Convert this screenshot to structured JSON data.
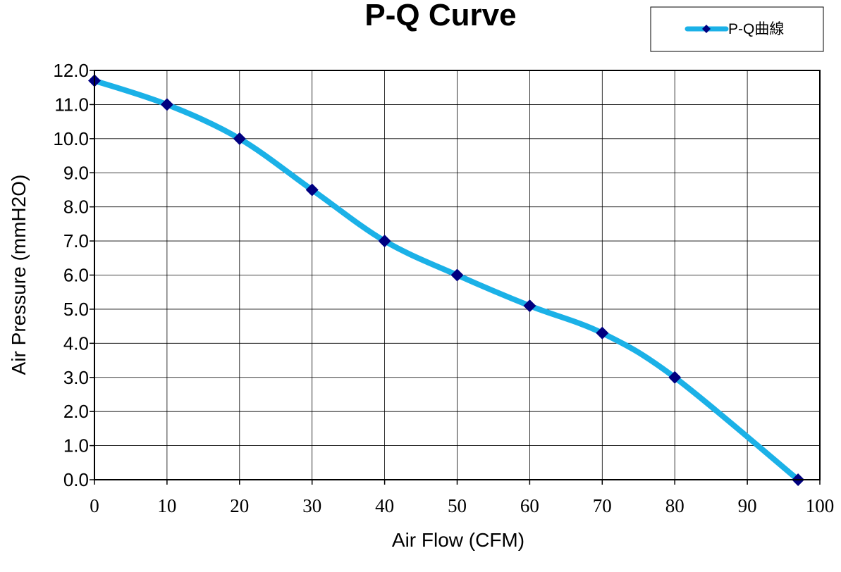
{
  "chart_data": {
    "type": "line",
    "title": "P-Q Curve",
    "xlabel": "Air Flow (CFM)",
    "ylabel": "Air Pressure (mmH2O)",
    "xlim": [
      0,
      100
    ],
    "ylim": [
      0,
      12
    ],
    "x_ticks": [
      "0",
      "10",
      "20",
      "30",
      "40",
      "50",
      "60",
      "70",
      "80",
      "90",
      "100"
    ],
    "y_ticks": [
      "0.0",
      "1.0",
      "2.0",
      "3.0",
      "4.0",
      "5.0",
      "6.0",
      "7.0",
      "8.0",
      "9.0",
      "10.0",
      "11.0",
      "12.0"
    ],
    "grid": true,
    "legend_position": "top-right",
    "series": [
      {
        "name": "P-Q曲線",
        "line_color": "#1BB1E7",
        "marker_color": "#000080",
        "marker": "diamond",
        "x": [
          0,
          10,
          20,
          30,
          40,
          50,
          60,
          70,
          80,
          97
        ],
        "y": [
          11.7,
          11.0,
          10.0,
          8.5,
          7.0,
          6.0,
          5.1,
          4.3,
          3.0,
          0.0
        ]
      }
    ]
  }
}
